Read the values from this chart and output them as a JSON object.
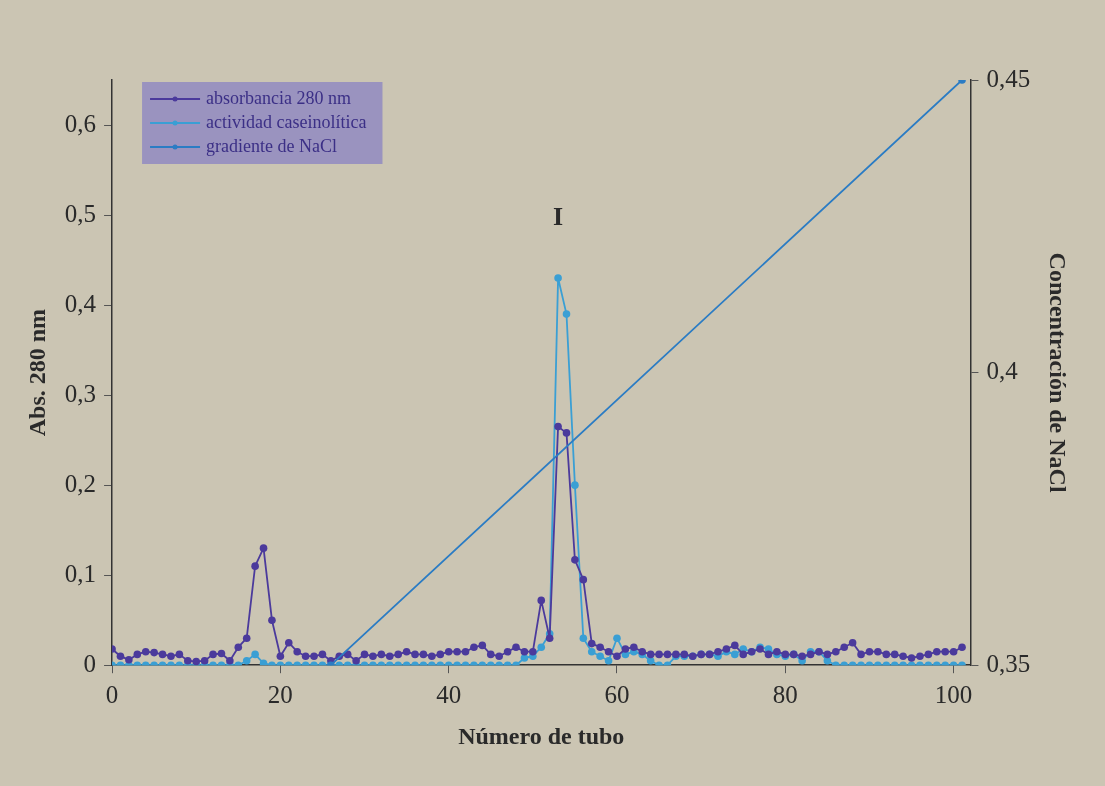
{
  "chart_data": {
    "type": "line",
    "xlabel": "Número de tubo",
    "ylabel": "Abs. 280 nm",
    "y2label": "Concentración de NaCl",
    "x": [
      0,
      1,
      2,
      3,
      4,
      5,
      6,
      7,
      8,
      9,
      10,
      11,
      12,
      13,
      14,
      15,
      16,
      17,
      18,
      19,
      20,
      21,
      22,
      23,
      24,
      25,
      26,
      27,
      28,
      29,
      30,
      31,
      32,
      33,
      34,
      35,
      36,
      37,
      38,
      39,
      40,
      41,
      42,
      43,
      44,
      45,
      46,
      47,
      48,
      49,
      50,
      51,
      52,
      53,
      54,
      55,
      56,
      57,
      58,
      59,
      60,
      61,
      62,
      63,
      64,
      65,
      66,
      67,
      68,
      69,
      70,
      71,
      72,
      73,
      74,
      75,
      76,
      77,
      78,
      79,
      80,
      81,
      82,
      83,
      84,
      85,
      86,
      87,
      88,
      89,
      90,
      91,
      92,
      93,
      94,
      95,
      96,
      97,
      98,
      99,
      100,
      101
    ],
    "series": [
      {
        "name": "absorbancia 280 nm",
        "color": "#4b3a9c",
        "values": [
          0.018,
          0.01,
          0.006,
          0.012,
          0.015,
          0.014,
          0.012,
          0.01,
          0.012,
          0.005,
          0.004,
          0.005,
          0.012,
          0.013,
          0.005,
          0.02,
          0.03,
          0.11,
          0.13,
          0.05,
          0.01,
          0.025,
          0.015,
          0.01,
          0.01,
          0.012,
          0.005,
          0.01,
          0.012,
          0.005,
          0.012,
          0.01,
          0.012,
          0.01,
          0.012,
          0.015,
          0.012,
          0.012,
          0.01,
          0.012,
          0.015,
          0.015,
          0.015,
          0.02,
          0.022,
          0.012,
          0.01,
          0.015,
          0.02,
          0.015,
          0.015,
          0.072,
          0.03,
          0.265,
          0.258,
          0.117,
          0.095,
          0.024,
          0.02,
          0.015,
          0.01,
          0.018,
          0.02,
          0.015,
          0.012,
          0.012,
          0.012,
          0.012,
          0.012,
          0.01,
          0.012,
          0.012,
          0.015,
          0.018,
          0.022,
          0.012,
          0.015,
          0.018,
          0.012,
          0.015,
          0.012,
          0.012,
          0.01,
          0.012,
          0.015,
          0.012,
          0.015,
          0.02,
          0.025,
          0.012,
          0.015,
          0.015,
          0.012,
          0.012,
          0.01,
          0.008,
          0.01,
          0.012,
          0.015,
          0.015,
          0.015,
          0.02
        ]
      },
      {
        "name": "actividad caseinolítica",
        "color": "#3a9fd4",
        "values": [
          0,
          0,
          0,
          0,
          0,
          0,
          0,
          0,
          0,
          0,
          0,
          0,
          0,
          0,
          0,
          0,
          0.005,
          0.012,
          0.002,
          0,
          0,
          0,
          0,
          0,
          0,
          0,
          0,
          0,
          0,
          0,
          0,
          0,
          0,
          0,
          0,
          0,
          0,
          0,
          0,
          0,
          0,
          0,
          0,
          0,
          0,
          0,
          0,
          0,
          0,
          0.008,
          0.01,
          0.02,
          0.035,
          0.43,
          0.39,
          0.2,
          0.03,
          0.015,
          0.01,
          0.005,
          0.03,
          0.012,
          0.015,
          0.012,
          0.005,
          0,
          0,
          0.01,
          0.01,
          0.01,
          0.012,
          0.012,
          0.01,
          0.015,
          0.012,
          0.018,
          0.015,
          0.02,
          0.018,
          0.012,
          0.01,
          0.012,
          0.005,
          0.015,
          0.015,
          0.005,
          0,
          0,
          0,
          0,
          0,
          0,
          0,
          0,
          0,
          0,
          0,
          0,
          0,
          0,
          0,
          0
        ]
      },
      {
        "name": "gradiente de NaCl",
        "color": "#2b7cc4",
        "axis": "y2",
        "x": [
          26,
          101
        ],
        "values": [
          0.35,
          0.45
        ]
      }
    ],
    "xlim": [
      0,
      102
    ],
    "xticks": [
      0,
      20,
      40,
      60,
      80,
      100
    ],
    "ylim": [
      0,
      0.65
    ],
    "yticks": [
      0,
      {
        "value": 0.1,
        "label": "0,1"
      },
      {
        "value": 0.2,
        "label": "0,2"
      },
      {
        "value": 0.3,
        "label": "0,3"
      },
      {
        "value": 0.4,
        "label": "0,4"
      },
      {
        "value": 0.5,
        "label": "0,5"
      },
      {
        "value": 0.6,
        "label": "0,6"
      }
    ],
    "y2lim": [
      0.35,
      0.45
    ],
    "y2ticks": [
      {
        "value": 0.35,
        "label": "0,35"
      },
      {
        "value": 0.4,
        "label": "0,4"
      },
      {
        "value": 0.45,
        "label": "0,45"
      }
    ],
    "annotations": [
      "I"
    ],
    "legend": "top left",
    "grid": false,
    "marker": "circle",
    "line_style": "solid"
  }
}
